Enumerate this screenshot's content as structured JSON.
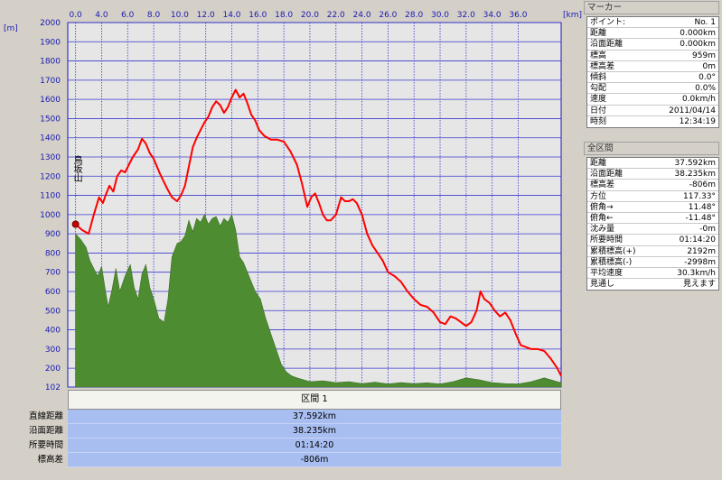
{
  "chart_data": {
    "type": "area",
    "xlabel": "[km]",
    "ylabel": "[m]",
    "xlim": [
      -0.6,
      37.3
    ],
    "ylim": [
      102,
      2000
    ],
    "x_ticks": [
      "0.0",
      "4.0",
      "6.0",
      "8.0",
      "10.0",
      "12.0",
      "14.0",
      "16.0",
      "18.0",
      "20.0",
      "22.0",
      "24.0",
      "26.0",
      "28.0",
      "30.0",
      "32.0",
      "34.0",
      "36.0"
    ],
    "y_ticks": [
      2000,
      1900,
      1800,
      1700,
      1600,
      1500,
      1400,
      1300,
      1200,
      1100,
      1000,
      900,
      800,
      700,
      600,
      500,
      400,
      300,
      200,
      102
    ],
    "grid": true,
    "start_label": "鳥坂山",
    "series": [
      {
        "color": "#ff0000",
        "x": [
          0.0,
          0.5,
          1.0,
          1.4,
          1.8,
          2.1,
          2.3,
          2.6,
          2.9,
          3.2,
          3.5,
          3.8,
          4.1,
          4.4,
          4.8,
          5.1,
          5.4,
          5.7,
          6.0,
          6.5,
          7.0,
          7.4,
          7.8,
          8.1,
          8.4,
          8.7,
          9.0,
          9.3,
          9.6,
          9.9,
          10.2,
          10.5,
          10.8,
          11.1,
          11.4,
          11.7,
          12.0,
          12.3,
          12.6,
          12.9,
          13.2,
          13.5,
          13.8,
          14.1,
          14.5,
          15.0,
          15.5,
          16.0,
          16.5,
          17.0,
          17.4,
          17.8,
          18.1,
          18.4,
          18.7,
          19.0,
          19.3,
          19.6,
          20.0,
          20.4,
          20.7,
          21.0,
          21.3,
          21.6,
          22.0,
          22.4,
          22.8,
          23.2,
          23.6,
          24.0,
          24.5,
          25.0,
          25.5,
          26.0,
          26.5,
          27.0,
          27.5,
          28.0,
          28.4,
          28.8,
          29.2,
          29.6,
          30.0,
          30.4,
          30.8,
          31.1,
          31.4,
          31.8,
          32.2,
          32.6,
          33.0,
          33.4,
          33.8,
          34.2,
          34.6,
          35.0,
          35.5,
          36.0,
          36.5,
          37.0,
          37.3
        ],
        "values": [
          950,
          920,
          900,
          1000,
          1090,
          1060,
          1100,
          1150,
          1120,
          1200,
          1230,
          1220,
          1260,
          1300,
          1340,
          1395,
          1370,
          1320,
          1290,
          1210,
          1140,
          1090,
          1070,
          1100,
          1150,
          1250,
          1350,
          1400,
          1440,
          1480,
          1510,
          1560,
          1590,
          1570,
          1530,
          1560,
          1610,
          1650,
          1610,
          1630,
          1580,
          1520,
          1490,
          1440,
          1410,
          1390,
          1390,
          1380,
          1330,
          1260,
          1160,
          1040,
          1090,
          1110,
          1060,
          1000,
          970,
          970,
          1000,
          1090,
          1070,
          1070,
          1080,
          1060,
          1000,
          900,
          840,
          800,
          760,
          700,
          680,
          650,
          600,
          560,
          530,
          520,
          490,
          440,
          430,
          470,
          460,
          440,
          420,
          440,
          500,
          600,
          560,
          540,
          500,
          470,
          490,
          450,
          380,
          320,
          310,
          300,
          300,
          290,
          250,
          200,
          160
        ]
      },
      {
        "color": "#4e8c32",
        "x": [
          0.0,
          0.4,
          0.8,
          1.1,
          1.4,
          1.7,
          2.0,
          2.3,
          2.5,
          2.8,
          3.1,
          3.4,
          3.8,
          4.2,
          4.5,
          4.8,
          5.1,
          5.4,
          5.7,
          6.0,
          6.4,
          6.8,
          7.1,
          7.4,
          7.8,
          8.1,
          8.4,
          8.7,
          9.0,
          9.3,
          9.6,
          9.9,
          10.2,
          10.5,
          10.8,
          11.1,
          11.4,
          11.7,
          12.0,
          12.3,
          12.6,
          12.9,
          13.2,
          13.5,
          13.8,
          14.2,
          14.6,
          15.0,
          15.4,
          15.8,
          16.2,
          16.6,
          17.0,
          17.5,
          18.0,
          19.0,
          20.0,
          21.0,
          22.0,
          23.0,
          24.0,
          25.0,
          26.0,
          27.0,
          28.0,
          29.0,
          30.0,
          31.0,
          32.0,
          33.0,
          34.0,
          35.0,
          36.0,
          36.5,
          37.0,
          37.3
        ],
        "values": [
          900,
          870,
          830,
          760,
          720,
          680,
          730,
          600,
          520,
          610,
          720,
          600,
          680,
          740,
          620,
          560,
          690,
          740,
          620,
          560,
          460,
          440,
          560,
          780,
          850,
          860,
          890,
          970,
          910,
          980,
          960,
          1000,
          950,
          980,
          990,
          940,
          980,
          960,
          1000,
          920,
          780,
          750,
          700,
          650,
          600,
          560,
          460,
          380,
          300,
          220,
          180,
          160,
          150,
          140,
          130,
          135,
          125,
          130,
          120,
          128,
          118,
          125,
          120,
          124,
          118,
          130,
          150,
          140,
          125,
          120,
          118,
          130,
          150,
          140,
          130,
          125
        ]
      }
    ]
  },
  "section": {
    "header": "区間 1",
    "rows": [
      {
        "label": "直線距離",
        "value": "37.592km"
      },
      {
        "label": "沿面距離",
        "value": "38.235km"
      },
      {
        "label": "所要時間",
        "value": "01:14:20"
      },
      {
        "label": "標高差",
        "value": "-806m"
      }
    ]
  },
  "marker": {
    "title": "マーカー",
    "rows": [
      {
        "label": "ポイント:",
        "value": "No. 1"
      },
      {
        "label": "距離",
        "value": "0.000km"
      },
      {
        "label": "沿面距離",
        "value": "0.000km"
      },
      {
        "label": "標高",
        "value": "959m"
      },
      {
        "label": "標高差",
        "value": "0m"
      },
      {
        "label": "傾斜",
        "value": "0.0°"
      },
      {
        "label": "勾配",
        "value": "0.0%"
      },
      {
        "label": "速度",
        "value": "0.0km/h"
      },
      {
        "label": "日付",
        "value": "2011/04/14"
      },
      {
        "label": "時刻",
        "value": "12:34:19"
      }
    ]
  },
  "all_section": {
    "title": "全区間",
    "rows": [
      {
        "label": "距離",
        "value": "37.592km"
      },
      {
        "label": "沿面距離",
        "value": "38.235km"
      },
      {
        "label": "標高差",
        "value": "-806m"
      },
      {
        "label": "方位",
        "value": "117.33°"
      },
      {
        "label": "俯角→",
        "value": "11.48°"
      },
      {
        "label": "俯角←",
        "value": "-11.48°"
      },
      {
        "label": "沈み量",
        "value": "-0m"
      },
      {
        "label": "所要時間",
        "value": "01:14:20"
      },
      {
        "label": "累積標高(+)",
        "value": "2192m"
      },
      {
        "label": "累積標高(-)",
        "value": "-2998m"
      },
      {
        "label": "平均速度",
        "value": "30.3km/h"
      },
      {
        "label": "見通し",
        "value": "見えます"
      }
    ]
  }
}
